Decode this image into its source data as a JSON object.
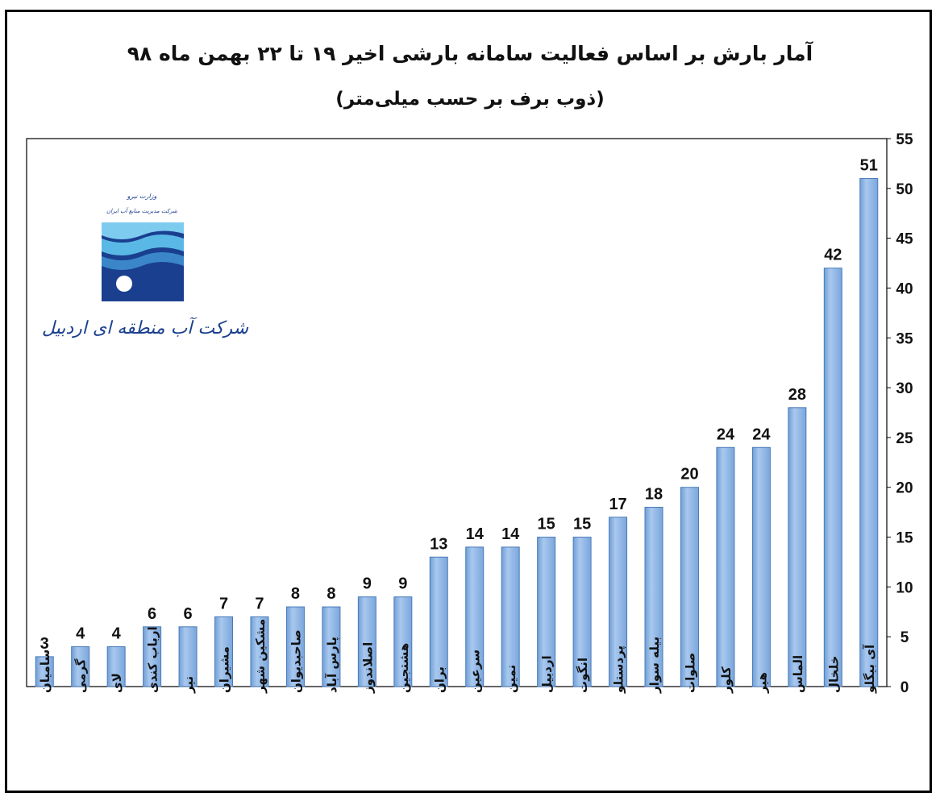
{
  "title": "آمار بارش بر اساس فعالیت سامانه بارشی اخیر ۱۹ تا ۲۲ بهمن ماه ۹۸",
  "subtitle": "(ذوب برف بر حسب میلی‌متر)",
  "logo": {
    "name": "شرکت آب منطقه ای اردبیل",
    "small_text": [
      "وزارت نیرو",
      "شرکت مدیریت منابع آب ایران"
    ],
    "icon": "wave-drop-logo-icon",
    "colors": [
      "#1a3f8f",
      "#5ab8e6"
    ]
  },
  "colors": {
    "bar_fill": "#8db4e2",
    "bar_stroke": "#4a7ab8",
    "axis": "#000000"
  },
  "chart_data": {
    "type": "bar",
    "categories": [
      "سامیان",
      "گرمی",
      "لای",
      "ارباب کندی",
      "نیر",
      "مشیران",
      "مشکین شهر",
      "صاحبدیوان",
      "پارس آباد",
      "اصلاندوز",
      "هشتجین",
      "بران",
      "سرعین",
      "نمین",
      "اردبیل",
      "انگوت",
      "پردستلو",
      "بیله سوار",
      "صلوات",
      "کلور",
      "هیر",
      "الماس",
      "خلخال",
      "آی بیگلو"
    ],
    "values": [
      3,
      4,
      4,
      6,
      6,
      7,
      7,
      8,
      8,
      9,
      9,
      13,
      14,
      14,
      15,
      15,
      17,
      18,
      20,
      24,
      24,
      28,
      42,
      51
    ],
    "data_labels": [
      "3",
      "4",
      "4",
      "6",
      "6",
      "7",
      "7",
      "8",
      "8",
      "9",
      "9",
      "13",
      "14",
      "14",
      "15",
      "15",
      "17",
      "18",
      "20",
      "24",
      "24",
      "28",
      "42",
      "51"
    ],
    "ylim": [
      0,
      55
    ],
    "yticks": [
      "0",
      "5",
      "10",
      "15",
      "20",
      "25",
      "30",
      "35",
      "40",
      "45",
      "50",
      "55"
    ],
    "y_axis_side": "right",
    "grid": false,
    "legend": "none"
  }
}
